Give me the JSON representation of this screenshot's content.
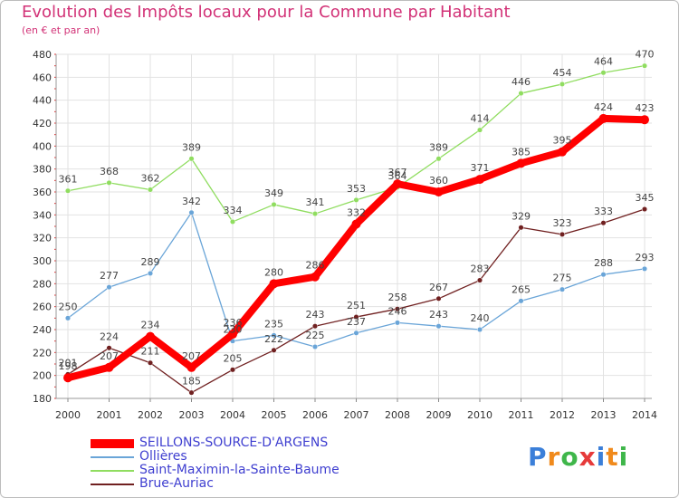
{
  "header": {
    "title": "Evolution des Impôts locaux pour la Commune par Habitant",
    "subtitle": "(en € et par an)"
  },
  "logo": {
    "text": "Proxiti",
    "letters": [
      "P",
      "r",
      "o",
      "x",
      "i",
      "t",
      "i"
    ],
    "colors": [
      "#3b7fd9",
      "#f08a1c",
      "#3fb64a",
      "#e63a3a",
      "#3b7fd9",
      "#f08a1c",
      "#3fb64a"
    ]
  },
  "chart_data": {
    "type": "line",
    "title": "Evolution des Impôts locaux pour la Commune par Habitant",
    "subtitle": "(en € et par an)",
    "x": [
      "2000",
      "2001",
      "2002",
      "2003",
      "2004",
      "2005",
      "2006",
      "2007",
      "2008",
      "2009",
      "2010",
      "2011",
      "2012",
      "2013",
      "2014"
    ],
    "ylim": [
      180,
      480
    ],
    "yticks": [
      180,
      200,
      220,
      240,
      260,
      280,
      300,
      320,
      340,
      360,
      380,
      400,
      420,
      440,
      460,
      480
    ],
    "grid": true,
    "legend_position": "bottom-left",
    "series": [
      {
        "name": "SEILLONS-SOURCE-D'ARGENS",
        "color": "#ff0000",
        "values": [
          198,
          207,
          234,
          207,
          236,
          280,
          286,
          332,
          367,
          360,
          371,
          385,
          395,
          424,
          423
        ]
      },
      {
        "name": "Ollières",
        "color": "#6aa5d8",
        "values": [
          250,
          277,
          289,
          342,
          230,
          235,
          225,
          237,
          246,
          243,
          240,
          265,
          275,
          288,
          293
        ]
      },
      {
        "name": "Saint-Maximin-la-Sainte-Baume",
        "color": "#90dd60",
        "values": [
          361,
          368,
          362,
          389,
          334,
          349,
          341,
          353,
          364,
          389,
          414,
          446,
          454,
          464,
          470
        ]
      },
      {
        "name": "Brue-Auriac",
        "color": "#702020",
        "values": [
          201,
          224,
          211,
          185,
          205,
          222,
          243,
          251,
          258,
          267,
          283,
          329,
          323,
          333,
          345
        ]
      }
    ]
  }
}
